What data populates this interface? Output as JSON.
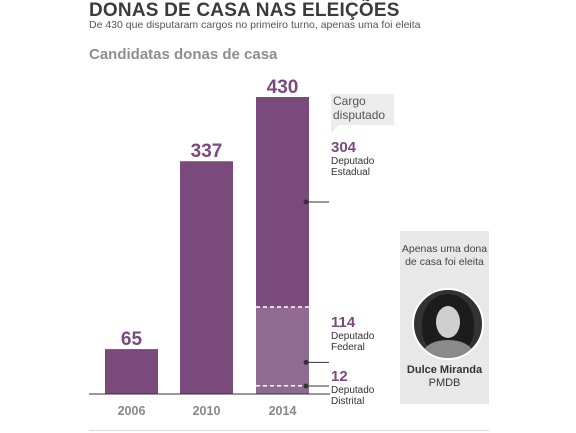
{
  "header": {
    "title": "DONAS DE CASA NAS ELEIÇÕES",
    "subtitle": "De 430 que disputaram cargos no primeiro turno, apenas uma foi eleita"
  },
  "chart_data": {
    "type": "bar",
    "title": "Candidatas donas de casa",
    "categories": [
      "2006",
      "2010",
      "2014"
    ],
    "values": [
      65,
      337,
      430
    ],
    "value_labels": [
      "65",
      "337",
      "430"
    ],
    "ylim": [
      0,
      430
    ],
    "grid": false,
    "colors": {
      "bar": "#7b4a7d",
      "bar_light": "#8f6a91",
      "axis": "#333333",
      "label": "#7b4a7d"
    },
    "breakdown_2014": {
      "legend_title": "Cargo disputado",
      "segments": [
        {
          "value": 304,
          "value_label": "304",
          "name": "Deputado Estadual"
        },
        {
          "value": 114,
          "value_label": "114",
          "name": "Deputado Federal"
        },
        {
          "value": 12,
          "value_label": "12",
          "name": "Deputado Distrital"
        }
      ]
    }
  },
  "callout": {
    "text": "Apenas uma dona de casa foi eleita",
    "name": "Dulce Miranda",
    "party": "PMDB"
  }
}
